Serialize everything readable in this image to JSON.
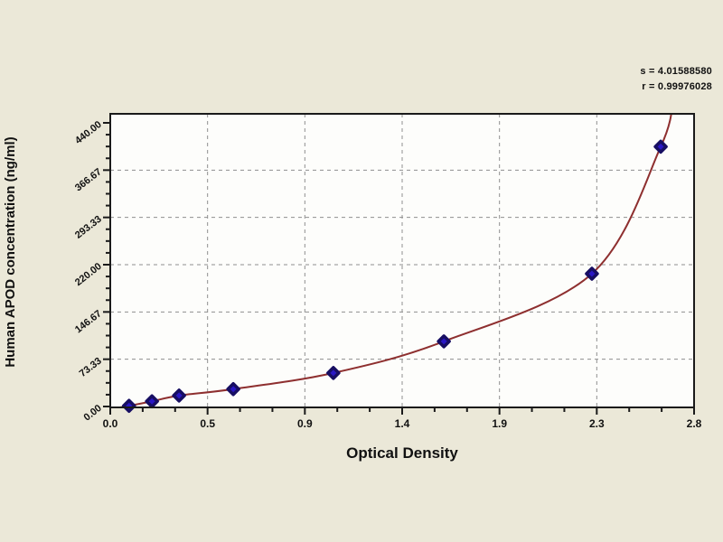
{
  "stats": {
    "s_line": "s = 4.01588580",
    "r_line": "r = 0.99976028"
  },
  "chart_data": {
    "type": "scatter",
    "title": "",
    "xlabel": "Optical Density",
    "ylabel": "Human APOD concentration (ng/ml)",
    "xlim": [
      0,
      2.8
    ],
    "ylim": [
      0,
      440
    ],
    "grid": "dashed, at major ticks only",
    "legend": "none",
    "x_ticks": [
      {
        "v": 0.0,
        "label": "0.0"
      },
      {
        "v": 0.4667,
        "label": "0.5"
      },
      {
        "v": 0.9333,
        "label": "0.9"
      },
      {
        "v": 1.4,
        "label": "1.4"
      },
      {
        "v": 1.8667,
        "label": "1.9"
      },
      {
        "v": 2.3333,
        "label": "2.3"
      },
      {
        "v": 2.8,
        "label": "2.8"
      }
    ],
    "x_minor_between_major": 2,
    "y_ticks": [
      {
        "v": 0,
        "label": "0.00"
      },
      {
        "v": 73.33,
        "label": "73.33"
      },
      {
        "v": 146.67,
        "label": "146.67"
      },
      {
        "v": 220.0,
        "label": "220.00"
      },
      {
        "v": 293.33,
        "label": "293.33"
      },
      {
        "v": 366.67,
        "label": "366.67"
      },
      {
        "v": 440.0,
        "label": "440.00"
      }
    ],
    "y_minor_between_major": 3,
    "series": [
      {
        "name": "standard-points",
        "marker": "diamond",
        "points": [
          {
            "od": 0.09,
            "conc": 1
          },
          {
            "od": 0.2,
            "conc": 8
          },
          {
            "od": 0.33,
            "conc": 17
          },
          {
            "od": 0.59,
            "conc": 27
          },
          {
            "od": 1.07,
            "conc": 52
          },
          {
            "od": 1.6,
            "conc": 101
          },
          {
            "od": 2.31,
            "conc": 206
          },
          {
            "od": 2.64,
            "conc": 403
          }
        ]
      }
    ],
    "fit_curve": {
      "name": "regression-curve",
      "anchors": [
        {
          "od": 0.0,
          "conc": -4
        },
        {
          "od": 0.09,
          "conc": 1
        },
        {
          "od": 0.2,
          "conc": 8
        },
        {
          "od": 0.33,
          "conc": 17
        },
        {
          "od": 0.59,
          "conc": 27
        },
        {
          "od": 1.07,
          "conc": 52
        },
        {
          "od": 1.6,
          "conc": 101
        },
        {
          "od": 2.31,
          "conc": 206
        },
        {
          "od": 2.64,
          "conc": 403
        },
        {
          "od": 2.7,
          "conc": 480
        }
      ]
    },
    "colors": {
      "background": "#ebe8d8",
      "plot_bg": "#fdfdfb",
      "frame": "#1a1a1a",
      "grid": "#8f8f8f",
      "curve": "#8e2f2f",
      "marker_fill": "#2a17c4",
      "marker_stroke": "#170e62",
      "text": "#111111"
    }
  }
}
